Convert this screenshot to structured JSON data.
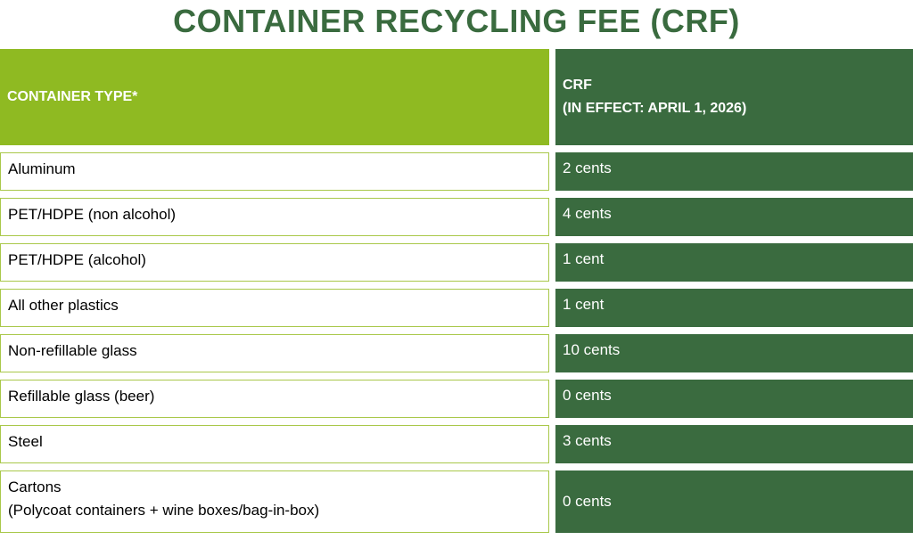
{
  "title": "CONTAINER RECYCLING FEE (CRF)",
  "header": {
    "container_type": "CONTAINER TYPE*",
    "crf_line1": "CRF",
    "crf_line2": "(IN EFFECT: APRIL 1, 2026)"
  },
  "rows": [
    {
      "type": "Aluminum",
      "fee": "2 cents"
    },
    {
      "type": "PET/HDPE (non alcohol)",
      "fee": "4 cents"
    },
    {
      "type": "PET/HDPE (alcohol)",
      "fee": "1 cent"
    },
    {
      "type": "All other plastics",
      "fee": "1 cent"
    },
    {
      "type": "Non-refillable glass",
      "fee": "10 cents"
    },
    {
      "type": "Refillable glass (beer)",
      "fee": "0 cents"
    },
    {
      "type": "Steel",
      "fee": "3 cents"
    },
    {
      "type_line1": "Cartons",
      "type_line2": "(Polycoat containers + wine boxes/bag-in-box)",
      "fee": "0 cents"
    }
  ],
  "colors": {
    "title_green": "#3a6b3f",
    "header_lime": "#8fba22",
    "dark_green": "#3a6b3f",
    "cell_border": "#a9c84a"
  }
}
